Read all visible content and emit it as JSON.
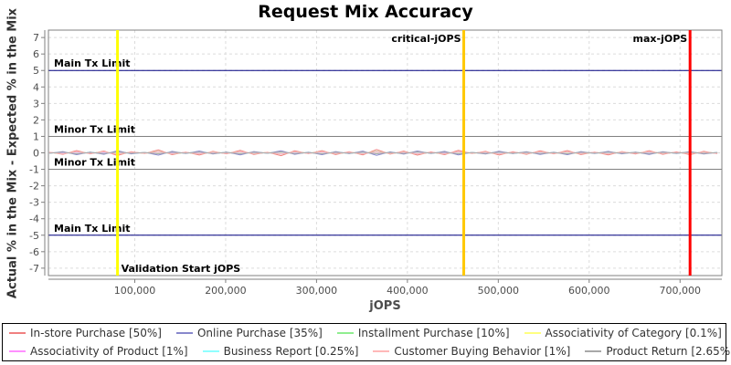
{
  "title": "Request Mix Accuracy",
  "axes": {
    "x_label": "jOPS",
    "y_label": "Actual % in the Mix - Expected % in the Mix"
  },
  "chart_data": {
    "type": "line",
    "title": "Request Mix Accuracy",
    "xlabel": "jOPS",
    "ylabel": "Actual % in the Mix - Expected % in the Mix",
    "xlim": [
      5000,
      746000
    ],
    "ylim": [
      -7.45,
      7.45
    ],
    "grid": true,
    "legend_position": "bottom",
    "x_ticks": [
      {
        "v": 100000,
        "label": "100,000"
      },
      {
        "v": 200000,
        "label": "200,000"
      },
      {
        "v": 300000,
        "label": "300,000"
      },
      {
        "v": 400000,
        "label": "400,000"
      },
      {
        "v": 500000,
        "label": "500,000"
      },
      {
        "v": 600000,
        "label": "600,000"
      },
      {
        "v": 700000,
        "label": "700,000"
      }
    ],
    "y_ticks": [
      7,
      6,
      5,
      4,
      3,
      2,
      1,
      0,
      -1,
      -2,
      -3,
      -4,
      -5,
      -6,
      -7
    ],
    "colors": {
      "grid": "#dcdcdc",
      "plot_border": "#808080",
      "axis": "#808080",
      "tick_text": "#4d4d4d",
      "annotation_text": "#000000"
    },
    "hlines": [
      {
        "y": 5,
        "label": "Main Tx Limit",
        "color": "#000080"
      },
      {
        "y": 1,
        "label": "Minor Tx Limit",
        "color": "#808080"
      },
      {
        "y": -1,
        "label": "Minor Tx Limit",
        "color": "#808080"
      },
      {
        "y": -5,
        "label": "Main Tx Limit",
        "color": "#000080"
      }
    ],
    "vlines": [
      {
        "x": 81000,
        "label": "Validation Start jOPS",
        "color": "#ffff00",
        "width": 3,
        "label_pos": "bottom-right"
      },
      {
        "x": 462000,
        "label": "critical-jOPS",
        "color": "#ffc800",
        "width": 3,
        "label_pos": "top-left"
      },
      {
        "x": 711000,
        "label": "max-jOPS",
        "color": "#ff0000",
        "width": 3,
        "label_pos": "top-left"
      }
    ],
    "x_start": 6000,
    "x_step": 15000,
    "series": [
      {
        "name": "in-store-purchase",
        "legend_label": "In-store Purchase [50%]",
        "color": "#f08080",
        "values": [
          0.04,
          -0.09,
          0.14,
          -0.06,
          0.11,
          -0.16,
          0.07,
          -0.04,
          0.18,
          -0.11,
          0.05,
          -0.13,
          0.09,
          -0.06,
          0.15,
          -0.1,
          0.04,
          -0.17,
          0.12,
          -0.05,
          0.13,
          -0.1,
          0.07,
          -0.12,
          0.2,
          -0.08,
          0.1,
          -0.14,
          0.06,
          -0.11,
          0.15,
          -0.04,
          0.09,
          -0.13,
          0.07,
          -0.09,
          0.12,
          -0.06,
          0.14,
          -0.1,
          0.05,
          -0.12,
          0.08,
          -0.07,
          0.13,
          -0.09,
          0.06,
          -0.11,
          0.09,
          -0.05
        ]
      },
      {
        "name": "online-purchase",
        "legend_label": "Online Purchase [35%]",
        "color": "#8888cc",
        "values": [
          -0.03,
          0.08,
          -0.11,
          0.05,
          -0.09,
          0.13,
          -0.06,
          0.03,
          -0.14,
          0.09,
          -0.04,
          0.11,
          -0.07,
          0.05,
          -0.12,
          0.08,
          -0.03,
          0.13,
          -0.09,
          0.04,
          -0.11,
          0.08,
          -0.05,
          0.1,
          -0.15,
          0.06,
          -0.08,
          0.11,
          -0.04,
          0.09,
          -0.12,
          0.03,
          -0.07,
          0.1,
          -0.05,
          0.07,
          -0.1,
          0.04,
          -0.11,
          0.08,
          -0.04,
          0.09,
          -0.06,
          0.05,
          -0.1,
          0.07,
          -0.04,
          0.08,
          -0.07,
          0.03
        ]
      },
      {
        "name": "installment-purchase",
        "legend_label": "Installment Purchase [10%]",
        "color": "#90ee90",
        "values": [
          0.02,
          -0.05,
          0.07,
          -0.03,
          0.06,
          -0.08,
          0.03,
          -0.02,
          0.09,
          -0.06,
          0.02,
          -0.07,
          0.05,
          -0.03,
          0.08,
          -0.05,
          0.02,
          -0.08,
          0.06,
          -0.02,
          0.07,
          -0.05,
          0.03,
          -0.06,
          0.1,
          -0.04,
          0.05,
          -0.07,
          0.03,
          -0.06,
          0.08,
          -0.02,
          0.04,
          -0.07,
          0.03,
          -0.05,
          0.06,
          -0.03,
          0.07,
          -0.05,
          0.02,
          -0.06,
          0.04,
          -0.03,
          0.07,
          -0.04,
          0.03,
          -0.05,
          0.04,
          -0.02
        ]
      },
      {
        "name": "associativity-of-category",
        "legend_label": "Associativity of Category [0.1%]",
        "color": "#ffff80",
        "values": [
          0.01,
          -0.01,
          0.02,
          -0.01,
          0.01,
          -0.02,
          0.01,
          -0.01,
          0.02,
          -0.01,
          0.01,
          -0.02,
          0.01,
          -0.01,
          0.02,
          -0.01,
          0.01,
          -0.02,
          0.02,
          -0.01,
          0.01,
          -0.02,
          0.01,
          -0.01,
          0.02,
          -0.01,
          0.01,
          -0.02,
          0.01,
          -0.01,
          0.02,
          -0.01,
          0.01,
          -0.02,
          0.01,
          -0.01,
          0.02,
          -0.01,
          0.01,
          -0.02,
          0.01,
          -0.01,
          0.02,
          -0.01,
          0.01,
          -0.02,
          0.01,
          -0.01,
          0.01,
          -0.01
        ]
      },
      {
        "name": "associativity-of-product",
        "legend_label": "Associativity of Product [1%]",
        "color": "#ff90ff",
        "values": [
          0.02,
          -0.03,
          0.04,
          -0.02,
          0.03,
          -0.05,
          0.02,
          -0.01,
          0.05,
          -0.03,
          0.02,
          -0.04,
          0.03,
          -0.02,
          0.05,
          -0.03,
          0.01,
          -0.05,
          0.04,
          -0.02,
          0.04,
          -0.03,
          0.02,
          -0.04,
          0.05,
          -0.02,
          0.03,
          -0.04,
          0.02,
          -0.03,
          0.05,
          -0.01,
          0.03,
          -0.04,
          0.02,
          -0.03,
          0.04,
          -0.02,
          0.05,
          -0.03,
          0.02,
          -0.04,
          0.03,
          -0.02,
          0.04,
          -0.03,
          0.02,
          -0.03,
          0.03,
          -0.02
        ]
      },
      {
        "name": "business-report",
        "legend_label": "Business Report [0.25%]",
        "color": "#90ffff",
        "values": [
          -0.01,
          0.03,
          -0.04,
          0.02,
          -0.03,
          0.04,
          -0.02,
          0.01,
          -0.04,
          0.03,
          -0.01,
          0.04,
          -0.03,
          0.02,
          -0.04,
          0.02,
          -0.01,
          0.04,
          -0.03,
          0.01,
          -0.04,
          0.03,
          -0.02,
          0.03,
          -0.04,
          0.02,
          -0.03,
          0.04,
          -0.01,
          0.03,
          -0.04,
          0.01,
          -0.02,
          0.03,
          -0.02,
          0.02,
          -0.03,
          0.01,
          -0.04,
          0.03,
          -0.01,
          0.03,
          -0.02,
          0.02,
          -0.03,
          0.02,
          -0.01,
          0.03,
          -0.02,
          0.01
        ]
      },
      {
        "name": "customer-buying-behavior",
        "legend_label": "Customer Buying Behavior [1%]",
        "color": "#ffb8b8",
        "values": [
          0.03,
          -0.06,
          0.08,
          -0.04,
          0.07,
          -0.08,
          0.04,
          -0.03,
          0.08,
          -0.06,
          0.03,
          -0.07,
          0.05,
          -0.04,
          0.08,
          -0.05,
          0.02,
          -0.08,
          0.06,
          -0.03,
          0.07,
          -0.05,
          0.04,
          -0.06,
          0.08,
          -0.04,
          0.05,
          -0.07,
          0.03,
          -0.06,
          0.08,
          -0.02,
          0.05,
          -0.07,
          0.03,
          -0.05,
          0.06,
          -0.04,
          0.07,
          -0.05,
          0.03,
          -0.06,
          0.05,
          -0.03,
          0.07,
          -0.04,
          0.03,
          -0.05,
          0.04,
          -0.03
        ]
      },
      {
        "name": "product-return",
        "legend_label": "Product Return [2.65%]",
        "color": "#a8a8a8",
        "values": [
          -0.02,
          0.04,
          -0.06,
          0.03,
          -0.05,
          0.06,
          -0.03,
          0.02,
          -0.06,
          0.04,
          -0.02,
          0.05,
          -0.04,
          0.03,
          -0.06,
          0.04,
          -0.02,
          0.06,
          -0.05,
          0.02,
          -0.06,
          0.04,
          -0.03,
          0.05,
          -0.06,
          0.03,
          -0.04,
          0.06,
          -0.02,
          0.04,
          -0.06,
          0.02,
          -0.04,
          0.05,
          -0.03,
          0.04,
          -0.05,
          0.02,
          -0.06,
          0.04,
          -0.02,
          0.05,
          -0.03,
          0.03,
          -0.05,
          0.04,
          -0.02,
          0.05,
          -0.04,
          0.02
        ]
      }
    ]
  }
}
